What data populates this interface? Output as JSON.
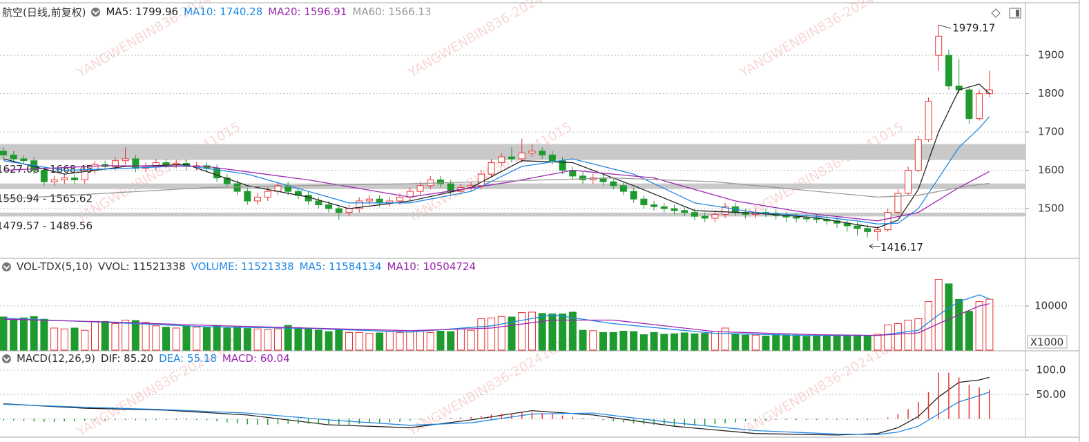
{
  "chart_data": [
    {
      "type": "candlestick",
      "title": "航空(日线,前复权)",
      "up_color": "#e8312f",
      "down_color": "#1f9a2e",
      "ylim": [
        1374,
        2030
      ],
      "yticks": [
        1500,
        1600,
        1700,
        1800,
        1900
      ],
      "grid": true,
      "candles": {
        "open": [
          1650,
          1640,
          1630,
          1625,
          1600,
          1570,
          1575,
          1580,
          1575,
          1600,
          1615,
          1610,
          1625,
          1630,
          1605,
          1610,
          1620,
          1615,
          1618,
          1610,
          1612,
          1605,
          1580,
          1565,
          1545,
          1520,
          1530,
          1545,
          1560,
          1545,
          1535,
          1520,
          1510,
          1500,
          1490,
          1500,
          1520,
          1525,
          1515,
          1520,
          1530,
          1545,
          1560,
          1575,
          1565,
          1545,
          1555,
          1560,
          1590,
          1620,
          1635,
          1630,
          1645,
          1650,
          1640,
          1625,
          1600,
          1585,
          1575,
          1580,
          1570,
          1560,
          1545,
          1525,
          1510,
          1505,
          1500,
          1495,
          1490,
          1480,
          1475,
          1485,
          1505,
          1490,
          1485,
          1490,
          1488,
          1482,
          1478,
          1475,
          1474,
          1472,
          1468,
          1462,
          1455,
          1448,
          1440,
          1445,
          1490,
          1540,
          1600,
          1680,
          1900,
          1900,
          1820,
          1810,
          1735,
          1800
        ],
        "high": [
          1660,
          1650,
          1640,
          1635,
          1610,
          1585,
          1590,
          1590,
          1610,
          1625,
          1625,
          1635,
          1660,
          1640,
          1620,
          1630,
          1630,
          1628,
          1628,
          1622,
          1622,
          1615,
          1590,
          1575,
          1555,
          1540,
          1555,
          1570,
          1570,
          1555,
          1545,
          1530,
          1520,
          1510,
          1510,
          1530,
          1535,
          1535,
          1530,
          1540,
          1555,
          1570,
          1585,
          1585,
          1575,
          1565,
          1570,
          1600,
          1630,
          1645,
          1660,
          1683,
          1670,
          1660,
          1650,
          1635,
          1610,
          1595,
          1590,
          1590,
          1580,
          1570,
          1555,
          1535,
          1520,
          1515,
          1510,
          1505,
          1500,
          1490,
          1495,
          1515,
          1515,
          1500,
          1500,
          1500,
          1498,
          1492,
          1488,
          1485,
          1484,
          1482,
          1478,
          1472,
          1465,
          1458,
          1455,
          1500,
          1550,
          1610,
          1690,
          1790,
          1979.17,
          1915,
          1890,
          1815,
          1810,
          1860
        ],
        "low": [
          1630,
          1620,
          1615,
          1590,
          1560,
          1560,
          1565,
          1565,
          1565,
          1590,
          1600,
          1600,
          1615,
          1595,
          1595,
          1600,
          1605,
          1605,
          1600,
          1600,
          1595,
          1570,
          1555,
          1535,
          1510,
          1510,
          1520,
          1535,
          1535,
          1525,
          1510,
          1500,
          1490,
          1470,
          1480,
          1490,
          1510,
          1505,
          1505,
          1510,
          1520,
          1535,
          1550,
          1555,
          1535,
          1535,
          1545,
          1550,
          1580,
          1610,
          1620,
          1620,
          1635,
          1630,
          1615,
          1590,
          1575,
          1565,
          1565,
          1560,
          1550,
          1535,
          1515,
          1500,
          1495,
          1490,
          1485,
          1480,
          1470,
          1465,
          1465,
          1475,
          1480,
          1475,
          1475,
          1478,
          1472,
          1465,
          1465,
          1464,
          1462,
          1458,
          1450,
          1440,
          1430,
          1425,
          1416.17,
          1440,
          1485,
          1535,
          1595,
          1675,
          1860,
          1810,
          1800,
          1720,
          1730,
          1790
        ],
        "close": [
          1640,
          1630,
          1625,
          1600,
          1570,
          1575,
          1580,
          1575,
          1600,
          1615,
          1610,
          1625,
          1630,
          1605,
          1610,
          1620,
          1615,
          1618,
          1610,
          1612,
          1605,
          1580,
          1565,
          1545,
          1520,
          1530,
          1545,
          1560,
          1545,
          1535,
          1520,
          1510,
          1500,
          1490,
          1500,
          1520,
          1525,
          1515,
          1520,
          1530,
          1545,
          1560,
          1575,
          1565,
          1545,
          1555,
          1560,
          1590,
          1620,
          1635,
          1630,
          1645,
          1650,
          1640,
          1625,
          1600,
          1585,
          1575,
          1580,
          1570,
          1560,
          1545,
          1525,
          1510,
          1505,
          1500,
          1495,
          1490,
          1480,
          1475,
          1485,
          1505,
          1490,
          1485,
          1490,
          1488,
          1482,
          1478,
          1475,
          1474,
          1472,
          1468,
          1462,
          1455,
          1448,
          1440,
          1445,
          1490,
          1540,
          1600,
          1680,
          1780,
          1950,
          1820,
          1810,
          1735,
          1800,
          1810
        ]
      },
      "series": [
        {
          "name": "MA5: 1799.96",
          "color": "#222222",
          "style": "line",
          "x": [
            0,
            6,
            12,
            18,
            24,
            30,
            34,
            40,
            46,
            51,
            56,
            62,
            68,
            74,
            80,
            84,
            86,
            88,
            90,
            92,
            94,
            96,
            97
          ],
          "values": [
            1630,
            1590,
            1610,
            1615,
            1560,
            1530,
            1500,
            1520,
            1555,
            1625,
            1620,
            1560,
            1495,
            1488,
            1476,
            1458,
            1450,
            1470,
            1550,
            1700,
            1810,
            1825,
            1799.96
          ]
        },
        {
          "name": "MA10: 1740.28",
          "color": "#1e88e5",
          "style": "line",
          "x": [
            0,
            6,
            12,
            18,
            24,
            30,
            34,
            40,
            46,
            51,
            56,
            62,
            68,
            74,
            80,
            84,
            86,
            88,
            90,
            92,
            94,
            96,
            97
          ],
          "values": [
            1625,
            1600,
            1605,
            1612,
            1590,
            1545,
            1515,
            1515,
            1545,
            1610,
            1630,
            1590,
            1515,
            1490,
            1480,
            1468,
            1460,
            1462,
            1500,
            1580,
            1660,
            1710,
            1740.28
          ]
        },
        {
          "name": "MA20: 1596.91",
          "color": "#9c27b0",
          "style": "line",
          "x": [
            0,
            10,
            20,
            30,
            40,
            50,
            56,
            64,
            72,
            80,
            86,
            90,
            94,
            97
          ],
          "values": [
            1600,
            1612,
            1610,
            1575,
            1530,
            1570,
            1600,
            1580,
            1520,
            1485,
            1468,
            1490,
            1555,
            1596.91
          ]
        },
        {
          "name": "MA60: 1566.13",
          "color": "#999999",
          "style": "line",
          "x": [
            0,
            20,
            40,
            60,
            70,
            80,
            86,
            90,
            94,
            97
          ],
          "values": [
            1525,
            1555,
            1565,
            1580,
            1570,
            1545,
            1530,
            1535,
            1555,
            1566.13
          ]
        }
      ],
      "zones": [
        {
          "low": 1627.08,
          "high": 1668.45,
          "label": "1627.08 - 1668.45"
        },
        {
          "low": 1550.94,
          "high": 1565.62,
          "label": "1550.94 - 1565.62"
        },
        {
          "low": 1479.57,
          "high": 1489.56,
          "label": "1479.57 - 1489.56"
        }
      ]
    },
    {
      "type": "bar",
      "title": "VOL-TDX(5,10)",
      "subtitle": "VVOL: 11521338",
      "unit": "X1000",
      "ylim": [
        0,
        20150
      ],
      "yticks": [
        10000
      ],
      "grid": true,
      "series": [
        {
          "name": "VOLUME: 11521338",
          "color": "#1e88e5",
          "style": "bar",
          "values": [
            7500,
            7000,
            7300,
            7600,
            7000,
            5000,
            4800,
            5000,
            4500,
            6500,
            6500,
            6000,
            6800,
            6700,
            6300,
            5500,
            5200,
            5000,
            5500,
            5200,
            5100,
            5600,
            5000,
            5200,
            4900,
            4800,
            4600,
            4800,
            5600,
            5100,
            4800,
            4500,
            4200,
            4600,
            4000,
            4000,
            3800,
            3900,
            4200,
            4000,
            4100,
            4300,
            4000,
            4300,
            4200,
            4800,
            4500,
            7100,
            7300,
            7600,
            7500,
            8500,
            8600,
            8300,
            8200,
            8200,
            8600,
            4500,
            4400,
            4000,
            4000,
            4300,
            4200,
            3500,
            4000,
            3600,
            3700,
            3900,
            3700,
            3800,
            4200,
            5000,
            3700,
            3400,
            3400,
            3200,
            3500,
            3400,
            3200,
            3100,
            3300,
            3200,
            3400,
            3200,
            3400,
            3300,
            3600,
            5700,
            6000,
            6800,
            7100,
            11000,
            16000,
            15000,
            11500,
            8800,
            11000,
            11521.338
          ]
        },
        {
          "name": "MA5: 11584134",
          "color": "#1e88e5",
          "style": "line",
          "x": [
            0,
            10,
            20,
            30,
            40,
            48,
            54,
            60,
            70,
            80,
            86,
            90,
            92,
            94,
            96,
            97
          ],
          "values": [
            7200,
            6300,
            5300,
            4900,
            4100,
            5500,
            8000,
            6000,
            3800,
            3300,
            3300,
            4500,
            8000,
            11000,
            12500,
            11584.134
          ]
        },
        {
          "name": "MA10: 10504724",
          "color": "#9c27b0",
          "style": "line",
          "x": [
            0,
            10,
            20,
            30,
            40,
            48,
            54,
            60,
            70,
            80,
            86,
            90,
            92,
            94,
            96,
            97
          ],
          "values": [
            7000,
            6400,
            5600,
            5000,
            4400,
            5000,
            6800,
            6800,
            4200,
            3500,
            3350,
            3900,
            6000,
            8000,
            10000,
            10504.724
          ]
        }
      ]
    },
    {
      "type": "bar",
      "title": "MACD(12,26,9)",
      "ylim": [
        -36,
        134
      ],
      "yticks": [
        {
          "value": 100,
          "label": "100.0"
        },
        {
          "value": 50,
          "label": "50.00"
        }
      ],
      "grid": true,
      "series": [
        {
          "name": "DIF: 85.20",
          "color": "#222222",
          "style": "line",
          "x": [
            0,
            8,
            16,
            24,
            32,
            40,
            46,
            52,
            58,
            66,
            74,
            82,
            86,
            88,
            90,
            92,
            94,
            96,
            97
          ],
          "values": [
            31,
            22,
            18,
            8,
            -12,
            -18,
            -2,
            17,
            8,
            -15,
            -30,
            -33,
            -30,
            -18,
            5,
            45,
            75,
            80,
            85.2
          ]
        },
        {
          "name": "DEA: 55.18",
          "color": "#1e88e5",
          "style": "line",
          "x": [
            0,
            8,
            16,
            24,
            32,
            40,
            46,
            52,
            58,
            66,
            74,
            82,
            86,
            88,
            90,
            92,
            94,
            96,
            97
          ],
          "values": [
            30,
            24,
            19,
            12,
            -2,
            -13,
            -8,
            10,
            12,
            -8,
            -24,
            -31,
            -32,
            -27,
            -15,
            10,
            35,
            48,
            55.18
          ]
        },
        {
          "name": "MACD: 60.04",
          "color": "#9c27b0",
          "style": "stick",
          "values": [
            -3,
            -3,
            -4,
            -5,
            -6,
            -6,
            -5,
            -5,
            -4,
            -3,
            -3,
            -2,
            -2,
            -3,
            -3,
            -2,
            -2,
            -2,
            -2,
            -2,
            -3,
            -5,
            -7,
            -9,
            -11,
            -12,
            -12,
            -11,
            -10,
            -10,
            -10,
            -11,
            -12,
            -13,
            -12,
            -10,
            -9,
            -8,
            -7,
            -6,
            -4,
            -2,
            0,
            1,
            2,
            3,
            4,
            6,
            9,
            11,
            12,
            13,
            13,
            12,
            10,
            7,
            4,
            2,
            -1,
            -3,
            -5,
            -7,
            -9,
            -11,
            -12,
            -13,
            -14,
            -14,
            -14,
            -13,
            -11,
            -9,
            -7,
            -5,
            -4,
            -3,
            -2,
            -2,
            -2,
            -2,
            -2,
            -2,
            -2,
            -2,
            -2,
            -2,
            -1,
            3,
            10,
            20,
            35,
            55,
            95,
            95,
            85,
            70,
            65,
            60.04
          ]
        }
      ]
    }
  ],
  "watermark": "YANGWENBIN836-20241015"
}
